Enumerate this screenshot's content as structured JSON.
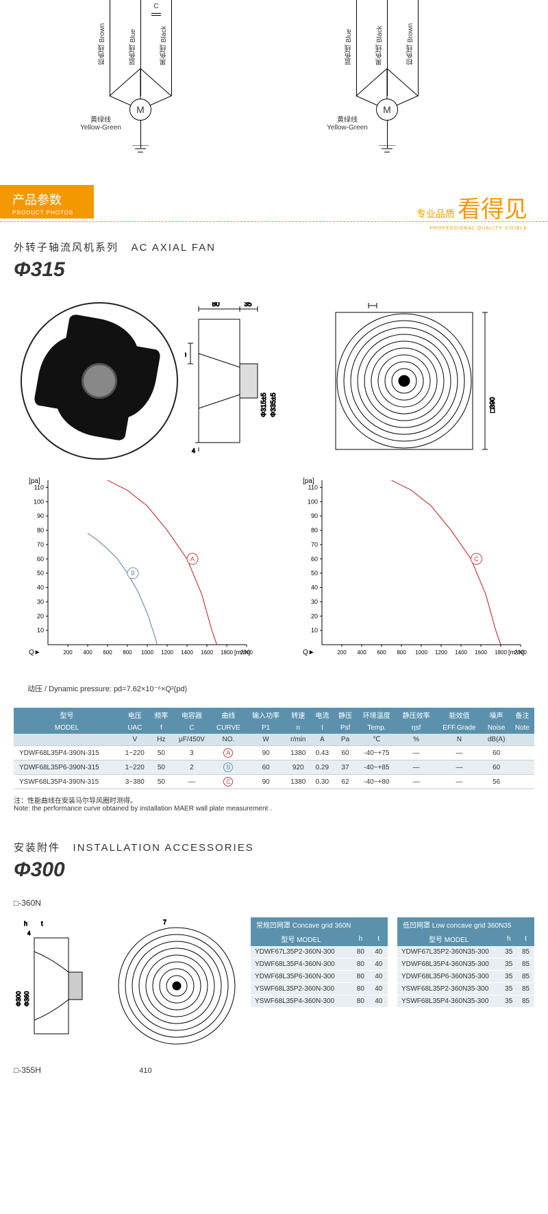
{
  "wiring": {
    "left": {
      "wires": [
        {
          "cn": "棕色线",
          "en": "Brown"
        },
        {
          "cn": "蓝色线",
          "en": "Blue"
        },
        {
          "cn": "黑色线",
          "en": "Black"
        }
      ],
      "cap_label": "C",
      "motor": "M",
      "yg_cn": "黄绿线",
      "yg_en": "Yellow-Green"
    },
    "right": {
      "wires": [
        {
          "cn": "蓝色线",
          "en": "Blue"
        },
        {
          "cn": "黑色线",
          "en": "Black"
        },
        {
          "cn": "棕色线",
          "en": "Brown"
        }
      ],
      "motor": "M",
      "yg_cn": "黄绿线",
      "yg_en": "Yellow-Green"
    }
  },
  "header": {
    "tab_cn": "产品参数",
    "tab_en": "PRODUCT PHOTOS",
    "right_small": "专业品质",
    "right_big": "看得见",
    "right_sub": "PROFESSIONAL QUALITY VISIBLE"
  },
  "product": {
    "series_cn": "外转子轴流风机系列",
    "series_en": "AC AXIAL FAN",
    "phi": "Φ315",
    "dims": {
      "w80": "80",
      "w35": "35",
      "h30": "30",
      "h4": "4",
      "d315": "Φ315±5",
      "d335": "Φ335±5",
      "w7": "7",
      "sq390": "□390"
    }
  },
  "charts": {
    "y_label": "[pa]",
    "y_ticks": [
      10,
      20,
      30,
      40,
      50,
      60,
      70,
      80,
      90,
      100,
      110
    ],
    "x_label": "Q►",
    "x_ticks": [
      200,
      400,
      600,
      800,
      1000,
      1200,
      1400,
      1600,
      1800,
      2000
    ],
    "x_unit": "[m³/h]",
    "left": {
      "curves": [
        {
          "id": "A",
          "color": "#c43c3c",
          "points": [
            [
              600,
              115
            ],
            [
              800,
              108
            ],
            [
              1000,
              97
            ],
            [
              1200,
              80
            ],
            [
              1400,
              60
            ],
            [
              1550,
              35
            ],
            [
              1650,
              10
            ],
            [
              1700,
              0
            ]
          ]
        },
        {
          "id": "B",
          "color": "#6b8fb5",
          "points": [
            [
              400,
              78
            ],
            [
              500,
              73
            ],
            [
              600,
              67
            ],
            [
              700,
              60
            ],
            [
              800,
              50
            ],
            [
              900,
              38
            ],
            [
              1000,
              22
            ],
            [
              1080,
              5
            ],
            [
              1100,
              0
            ]
          ]
        }
      ],
      "note_cn": "动压 / Dynamic pressure:",
      "note_formula": "pd=7.62×10⁻⁶×Q²(pd)"
    },
    "right": {
      "curves": [
        {
          "id": "C",
          "color": "#c43c3c",
          "points": [
            [
              700,
              115
            ],
            [
              900,
              108
            ],
            [
              1100,
              97
            ],
            [
              1300,
              80
            ],
            [
              1500,
              60
            ],
            [
              1650,
              35
            ],
            [
              1750,
              10
            ],
            [
              1800,
              0
            ]
          ]
        }
      ]
    }
  },
  "spec_table": {
    "headers_cn": [
      "型号",
      "电压",
      "频率",
      "电容器",
      "曲线",
      "输入功率",
      "转速",
      "电流",
      "静压",
      "环境温度",
      "静压效率",
      "能效值",
      "噪声",
      "备注"
    ],
    "headers_en": [
      "MODEL",
      "UAC",
      "f",
      "C",
      "CURVE",
      "P1",
      "n",
      "I",
      "Psf",
      "Temp.",
      "ηsf",
      "EFF.Grade",
      "Noise",
      "Note"
    ],
    "units": [
      "",
      "V",
      "Hz",
      "μF/450V",
      "NO.",
      "W",
      "r/min",
      "A",
      "Pa",
      "℃",
      "%",
      "N",
      "dB(A)",
      ""
    ],
    "rows": [
      {
        "model": "YDWF68L35P4-390N-315",
        "uac": "1~220",
        "f": "50",
        "c": "3",
        "curve": "A",
        "curve_color": "#c43c3c",
        "p1": "90",
        "n": "1380",
        "i": "0.43",
        "psf": "60",
        "temp": "-40~+75",
        "nsf": "—",
        "eff": "—",
        "noise": "60",
        "note": ""
      },
      {
        "model": "YDWF68L35P6-390N-315",
        "uac": "1~220",
        "f": "50",
        "c": "2",
        "curve": "B",
        "curve_color": "#6b8fb5",
        "p1": "60",
        "n": "920",
        "i": "0.29",
        "psf": "37",
        "temp": "-40~+85",
        "nsf": "—",
        "eff": "—",
        "noise": "60",
        "note": ""
      },
      {
        "model": "YSWF68L35P4-390N-315",
        "uac": "3~380",
        "f": "50",
        "c": "—",
        "curve": "C",
        "curve_color": "#c43c3c",
        "p1": "90",
        "n": "1380",
        "i": "0.30",
        "psf": "62",
        "temp": "-40~+80",
        "nsf": "—",
        "eff": "—",
        "noise": "56",
        "note": ""
      }
    ],
    "foot_cn": "注：性能曲线在安装马尔导风圈时测得。",
    "foot_en": "Note: the performance curve obtained by installation MAER wall plate measurement ."
  },
  "accessories": {
    "title_cn": "安装附件",
    "title_en": "INSTALLATION ACCESSORIES",
    "phi": "Φ300",
    "grid1_label": "□-360N",
    "dim_h": "h",
    "dim_t": "t",
    "dim_4": "4",
    "dim_7": "7",
    "dim_d300": "Φ300",
    "dim_d360": "Φ360",
    "concave": {
      "title": "常规凹网罩  Concave grid  360N",
      "cols": [
        "型号  MODEL",
        "h",
        "t"
      ],
      "rows": [
        [
          "YDWF67L35P2-360N-300",
          "80",
          "40"
        ],
        [
          "YDWF68L35P4-360N-300",
          "80",
          "40"
        ],
        [
          "YDWF68L35P6-360N-300",
          "80",
          "40"
        ],
        [
          "YSWF68L35P2-360N-300",
          "80",
          "40"
        ],
        [
          "YSWF68L35P4-360N-300",
          "80",
          "40"
        ]
      ]
    },
    "low": {
      "title": "低凹网罩  Low concave grid  360N35",
      "cols": [
        "型号  MODEL",
        "h",
        "t"
      ],
      "rows": [
        [
          "YDWF67L35P2-360N35-300",
          "35",
          "85"
        ],
        [
          "YDWF68L35P4-360N35-300",
          "35",
          "85"
        ],
        [
          "YDWF68L35P6-360N35-300",
          "35",
          "85"
        ],
        [
          "YSWF68L35P2-360N35-300",
          "35",
          "85"
        ],
        [
          "YSWF68L35P4-360N35-300",
          "35",
          "85"
        ]
      ]
    },
    "grid2_label": "□-355H",
    "grid2_dim": "410"
  }
}
